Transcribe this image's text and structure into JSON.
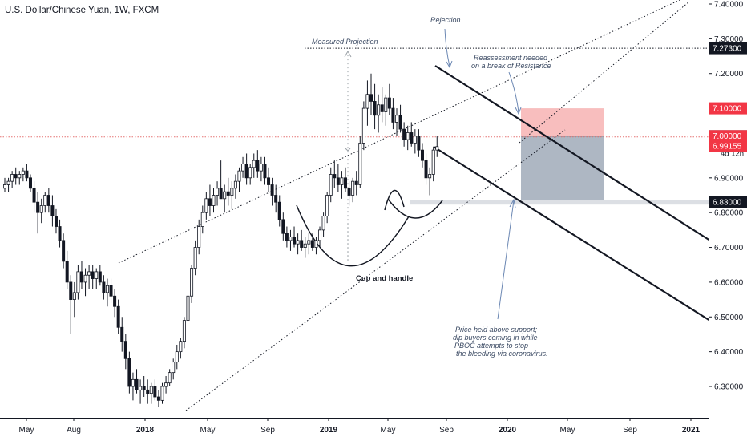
{
  "chart_data": {
    "type": "candlestick",
    "title": "U.S. Dollar/Chinese Yuan, 1W, FXCM",
    "x_ticks": [
      "May",
      "Aug",
      "2018",
      "May",
      "Sep",
      "2019",
      "May",
      "Sep",
      "2020",
      "May",
      "Sep",
      "2021"
    ],
    "y_ticks": [
      "7.40000",
      "7.30000",
      "7.20000",
      "7.10000",
      "7.00000",
      "6.90000",
      "6.80000",
      "6.70000",
      "6.60000",
      "6.50000",
      "6.40000",
      "6.30000"
    ],
    "ylim": [
      6.23,
      7.42
    ],
    "price_labels": {
      "resistance_target": "7.27300",
      "stop_loss": "7.10000",
      "entry": "7.02000",
      "current_price": "7.01783",
      "countdown": "4d 12h",
      "round_level": "7.00000",
      "last_close": "6.99155",
      "support": "6.83000"
    },
    "series": [
      {
        "values": [
          [
            6.87,
            6.9,
            6.86,
            6.88
          ],
          [
            6.88,
            6.9,
            6.86,
            6.89
          ],
          [
            6.89,
            6.92,
            6.87,
            6.91
          ],
          [
            6.91,
            6.93,
            6.88,
            6.9
          ],
          [
            6.9,
            6.92,
            6.88,
            6.91
          ],
          [
            6.91,
            6.93,
            6.89,
            6.92
          ],
          [
            6.92,
            6.94,
            6.89,
            6.9
          ],
          [
            6.9,
            6.91,
            6.86,
            6.87
          ],
          [
            6.87,
            6.89,
            6.8,
            6.83
          ],
          [
            6.83,
            6.86,
            6.74,
            6.8
          ],
          [
            6.8,
            6.84,
            6.77,
            6.82
          ],
          [
            6.82,
            6.86,
            6.8,
            6.85
          ],
          [
            6.85,
            6.87,
            6.8,
            6.82
          ],
          [
            6.82,
            6.85,
            6.76,
            6.79
          ],
          [
            6.79,
            6.81,
            6.74,
            6.76
          ],
          [
            6.76,
            6.78,
            6.7,
            6.72
          ],
          [
            6.72,
            6.74,
            6.64,
            6.66
          ],
          [
            6.66,
            6.69,
            6.58,
            6.6
          ],
          [
            6.6,
            6.62,
            6.45,
            6.55
          ],
          [
            6.55,
            6.6,
            6.5,
            6.57
          ],
          [
            6.57,
            6.65,
            6.55,
            6.63
          ],
          [
            6.63,
            6.66,
            6.58,
            6.6
          ],
          [
            6.6,
            6.64,
            6.56,
            6.62
          ],
          [
            6.62,
            6.65,
            6.58,
            6.63
          ],
          [
            6.63,
            6.65,
            6.58,
            6.61
          ],
          [
            6.61,
            6.64,
            6.58,
            6.63
          ],
          [
            6.63,
            6.65,
            6.59,
            6.6
          ],
          [
            6.6,
            6.62,
            6.55,
            6.57
          ],
          [
            6.57,
            6.61,
            6.53,
            6.59
          ],
          [
            6.59,
            6.61,
            6.54,
            6.56
          ],
          [
            6.56,
            6.58,
            6.5,
            6.53
          ],
          [
            6.53,
            6.55,
            6.45,
            6.47
          ],
          [
            6.47,
            6.5,
            6.4,
            6.43
          ],
          [
            6.43,
            6.45,
            6.35,
            6.38
          ],
          [
            6.38,
            6.4,
            6.28,
            6.3
          ],
          [
            6.3,
            6.34,
            6.26,
            6.32
          ],
          [
            6.32,
            6.35,
            6.28,
            6.29
          ],
          [
            6.29,
            6.32,
            6.25,
            6.3
          ],
          [
            6.3,
            6.33,
            6.27,
            6.29
          ],
          [
            6.29,
            6.32,
            6.25,
            6.28
          ],
          [
            6.28,
            6.31,
            6.25,
            6.3
          ],
          [
            6.3,
            6.32,
            6.26,
            6.27
          ],
          [
            6.27,
            6.29,
            6.24,
            6.26
          ],
          [
            6.26,
            6.31,
            6.25,
            6.3
          ],
          [
            6.3,
            6.33,
            6.28,
            6.31
          ],
          [
            6.31,
            6.35,
            6.3,
            6.34
          ],
          [
            6.34,
            6.38,
            6.32,
            6.37
          ],
          [
            6.37,
            6.42,
            6.35,
            6.4
          ],
          [
            6.4,
            6.44,
            6.38,
            6.43
          ],
          [
            6.43,
            6.5,
            6.41,
            6.49
          ],
          [
            6.49,
            6.58,
            6.47,
            6.56
          ],
          [
            6.56,
            6.65,
            6.54,
            6.64
          ],
          [
            6.64,
            6.72,
            6.62,
            6.7
          ],
          [
            6.7,
            6.78,
            6.68,
            6.76
          ],
          [
            6.76,
            6.82,
            6.74,
            6.8
          ],
          [
            6.8,
            6.86,
            6.78,
            6.84
          ],
          [
            6.84,
            6.88,
            6.79,
            6.82
          ],
          [
            6.82,
            6.87,
            6.8,
            6.85
          ],
          [
            6.85,
            6.89,
            6.82,
            6.87
          ],
          [
            6.87,
            6.95,
            6.85,
            6.84
          ],
          [
            6.84,
            6.88,
            6.8,
            6.86
          ],
          [
            6.86,
            6.9,
            6.82,
            6.85
          ],
          [
            6.85,
            6.89,
            6.81,
            6.87
          ],
          [
            6.87,
            6.91,
            6.84,
            6.89
          ],
          [
            6.89,
            6.93,
            6.86,
            6.92
          ],
          [
            6.92,
            6.96,
            6.9,
            6.94
          ],
          [
            6.94,
            6.97,
            6.88,
            6.9
          ],
          [
            6.9,
            6.94,
            6.88,
            6.93
          ],
          [
            6.93,
            6.97,
            6.9,
            6.95
          ],
          [
            6.95,
            6.98,
            6.9,
            6.92
          ],
          [
            6.92,
            6.96,
            6.89,
            6.94
          ],
          [
            6.94,
            6.96,
            6.88,
            6.9
          ],
          [
            6.9,
            6.93,
            6.86,
            6.88
          ],
          [
            6.88,
            6.9,
            6.82,
            6.85
          ],
          [
            6.85,
            6.88,
            6.8,
            6.83
          ],
          [
            6.83,
            6.85,
            6.76,
            6.78
          ],
          [
            6.78,
            6.8,
            6.72,
            6.74
          ],
          [
            6.74,
            6.76,
            6.7,
            6.72
          ],
          [
            6.72,
            6.75,
            6.69,
            6.73
          ],
          [
            6.73,
            6.76,
            6.7,
            6.71
          ],
          [
            6.71,
            6.74,
            6.68,
            6.72
          ],
          [
            6.72,
            6.75,
            6.69,
            6.7
          ],
          [
            6.7,
            6.73,
            6.67,
            6.71
          ],
          [
            6.71,
            6.74,
            6.68,
            6.72
          ],
          [
            6.72,
            6.74,
            6.69,
            6.7
          ],
          [
            6.7,
            6.73,
            6.68,
            6.72
          ],
          [
            6.72,
            6.76,
            6.7,
            6.75
          ],
          [
            6.75,
            6.8,
            6.73,
            6.79
          ],
          [
            6.79,
            6.86,
            6.77,
            6.85
          ],
          [
            6.85,
            6.93,
            6.83,
            6.91
          ],
          [
            6.91,
            6.95,
            6.87,
            6.9
          ],
          [
            6.9,
            6.94,
            6.86,
            6.88
          ],
          [
            6.88,
            6.92,
            6.84,
            6.9
          ],
          [
            6.9,
            6.93,
            6.86,
            6.87
          ],
          [
            6.87,
            6.89,
            6.82,
            6.85
          ],
          [
            6.85,
            6.9,
            6.83,
            6.89
          ],
          [
            6.89,
            6.92,
            6.85,
            6.88
          ],
          [
            6.88,
            7.02,
            6.87,
            7.0
          ],
          [
            7.0,
            7.12,
            6.98,
            7.1
          ],
          [
            7.1,
            7.18,
            7.05,
            7.14
          ],
          [
            7.14,
            7.2,
            7.08,
            7.12
          ],
          [
            7.12,
            7.17,
            7.04,
            7.08
          ],
          [
            7.08,
            7.14,
            7.03,
            7.11
          ],
          [
            7.11,
            7.16,
            7.06,
            7.09
          ],
          [
            7.09,
            7.14,
            7.05,
            7.13
          ],
          [
            7.13,
            7.17,
            7.08,
            7.1
          ],
          [
            7.1,
            7.13,
            7.04,
            7.06
          ],
          [
            7.06,
            7.1,
            7.02,
            7.08
          ],
          [
            7.08,
            7.11,
            7.03,
            7.04
          ],
          [
            7.04,
            7.06,
            6.99,
            7.01
          ],
          [
            7.01,
            7.05,
            6.98,
            7.03
          ],
          [
            7.03,
            7.06,
            6.99,
            7.0
          ],
          [
            7.0,
            7.04,
            6.97,
            7.02
          ],
          [
            7.02,
            7.04,
            6.96,
            6.98
          ],
          [
            6.98,
            7.0,
            6.93,
            6.95
          ],
          [
            6.95,
            6.97,
            6.88,
            6.9
          ],
          [
            6.9,
            6.93,
            6.85,
            6.91
          ],
          [
            6.91,
            6.99,
            6.89,
            6.98
          ],
          [
            6.98,
            7.02,
            6.96,
            6.99
          ]
        ]
      }
    ],
    "annotations": [
      {
        "text": "Measured Projection"
      },
      {
        "text": "Rejection"
      },
      {
        "text": "Reassessment needed"
      },
      {
        "text": "on a break of Resistance"
      },
      {
        "text": "Cup and handle"
      },
      {
        "text": "Price held above support;"
      },
      {
        "text": "dip buyers coming in while"
      },
      {
        "text": "PBOC attempts to stop"
      },
      {
        "text": "the bleeding via coronavirus."
      }
    ],
    "position": {
      "entry": 7.02,
      "stop": 7.1,
      "target": 6.83
    },
    "levels": {
      "resistance": 7.273,
      "support": 6.83
    },
    "colors": {
      "candle": "#131722",
      "up_body": "#ffffff",
      "channel": "#131722",
      "risk_zone": "#f7b7b7",
      "reward_zone": "#a5afbc",
      "support_band": "#dcdfe4",
      "resistance_tag": "#131722",
      "stop_tag": "#f23645",
      "entry_tag": "#555b66",
      "last_tag": "#f23645",
      "price_line": "#e57373"
    },
    "grid": false
  }
}
